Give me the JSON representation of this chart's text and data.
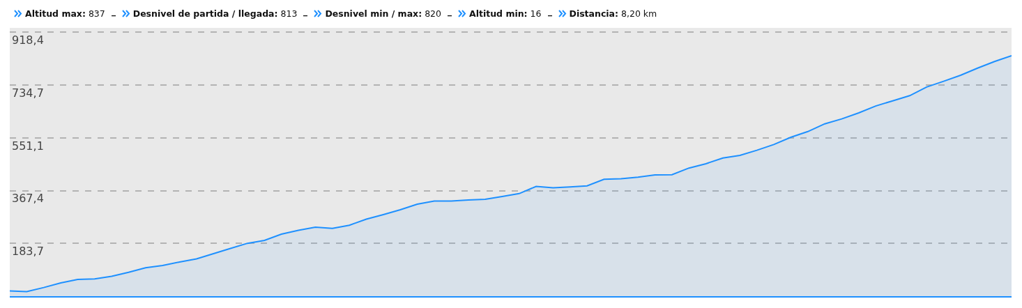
{
  "chart_data": {
    "type": "area",
    "annotations": [
      "Altitud max: 837",
      "Desnivel de partida / llegada: 813",
      "Desnivel min / max: 820",
      "Altitud min: 16",
      "Distancia: 8,20 km"
    ],
    "categories": [
      null,
      null,
      null,
      null,
      null,
      null,
      null,
      null,
      null,
      null,
      null,
      null,
      null,
      null,
      null,
      null,
      null,
      null,
      null,
      null,
      null,
      null,
      null,
      null,
      null,
      null,
      null,
      null,
      null,
      null,
      null,
      null,
      null,
      null,
      null,
      null,
      null,
      null,
      null,
      null,
      null,
      null,
      null,
      null,
      null,
      null,
      null,
      null,
      null,
      null,
      null,
      null,
      null,
      null,
      null,
      null,
      null,
      null,
      null,
      null
    ],
    "series": [
      {
        "color": "#1e90ff",
        "values": [
          18,
          16,
          30,
          46,
          58,
          60,
          69,
          83,
          99,
          107,
          119,
          130,
          148,
          166,
          184,
          194,
          216,
          229,
          240,
          236,
          247,
          268,
          284,
          301,
          320,
          331,
          331,
          335,
          337,
          347,
          357,
          382,
          377,
          380,
          384,
          407,
          409,
          414,
          422,
          423,
          446,
          461,
          481,
          490,
          508,
          528,
          553,
          573,
          600,
          617,
          638,
          662,
          680,
          698,
          728,
          748,
          769,
          794,
          817,
          837
        ]
      }
    ],
    "ylim": [
      0,
      934
    ],
    "yticks": [
      {
        "value": 183.7,
        "label": "183,7"
      },
      {
        "value": 367.4,
        "label": "367,4"
      },
      {
        "value": 551.1,
        "label": "551,1"
      },
      {
        "value": 734.7,
        "label": "734,7"
      },
      {
        "value": 918.4,
        "label": "918,4"
      }
    ],
    "grid": "y",
    "line_style": "solid",
    "tick_labels": "y"
  }
}
